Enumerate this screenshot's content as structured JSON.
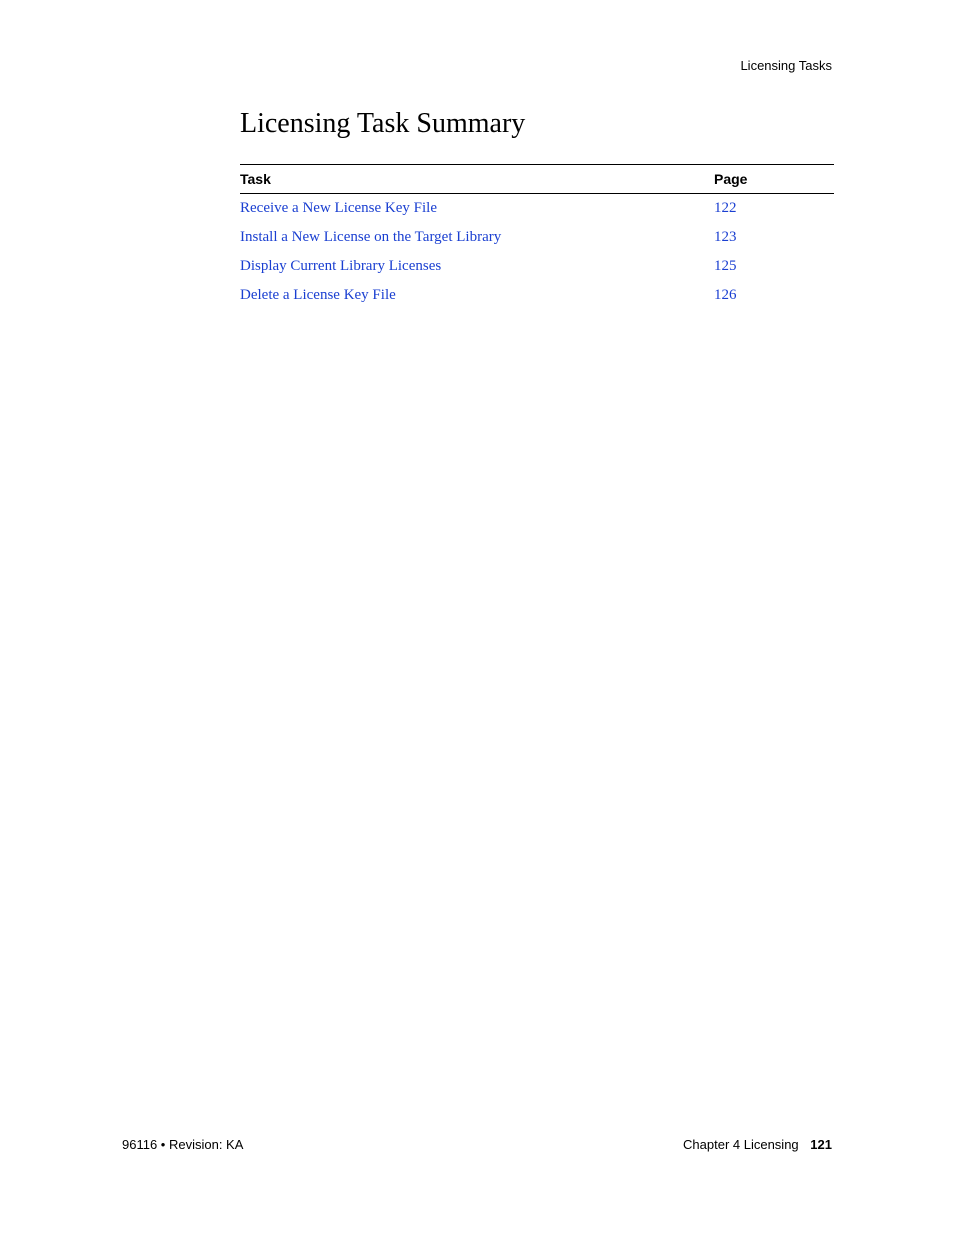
{
  "header": {
    "running_head": "Licensing Tasks"
  },
  "section": {
    "title": "Licensing Task Summary",
    "columns": {
      "task": "Task",
      "page": "Page"
    },
    "rows": [
      {
        "task": "Receive a New License Key File",
        "page": "122"
      },
      {
        "task": "Install a New License on the Target Library",
        "page": "123"
      },
      {
        "task": "Display Current Library Licenses",
        "page": "125"
      },
      {
        "task": "Delete a License Key File",
        "page": "126"
      }
    ],
    "link_color": "#1a3fd1"
  },
  "footer": {
    "left": "96116 • Revision: KA",
    "right_label": "Chapter 4 Licensing",
    "page_number": "121"
  }
}
